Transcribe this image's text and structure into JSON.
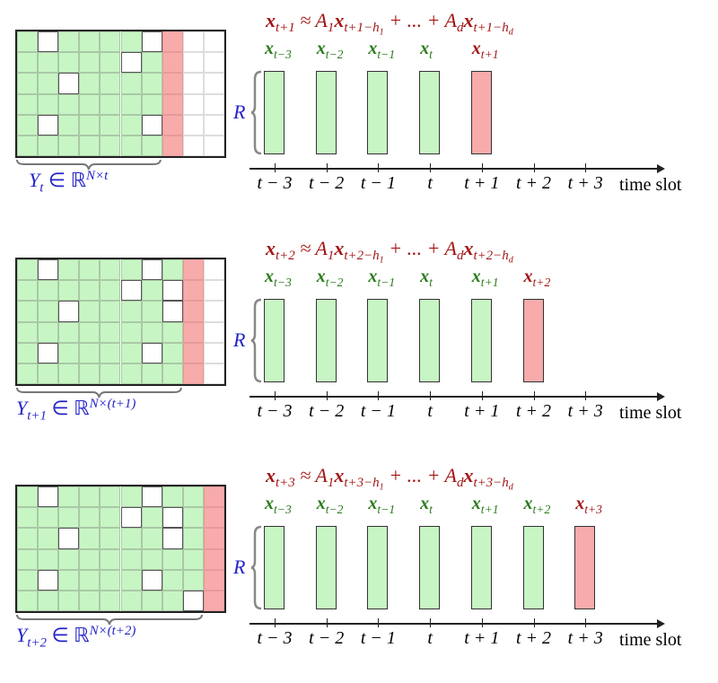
{
  "colors": {
    "observed": "#c8f5c4",
    "forecast": "#f7abab",
    "missing": "#ffffff",
    "formula": "#a31515",
    "label_green": "#2a7a1a",
    "matrix_label": "#2323c8"
  },
  "row_label": "R",
  "axis": {
    "ticks": [
      "t − 3",
      "t − 2",
      "t − 1",
      "t",
      "t + 1",
      "t + 2",
      "t + 3"
    ],
    "label": "time slot"
  },
  "panels": [
    {
      "formula": {
        "lhs_sub": "t+1",
        "term1_sub": "t+1−",
        "h1": "h",
        "h1_sub": "1",
        "termd_sub": "t+1−",
        "hd": "h",
        "hd_sub": "d"
      },
      "vectors": [
        {
          "sub": "t−3",
          "state": "observed"
        },
        {
          "sub": "t−2",
          "state": "observed"
        },
        {
          "sub": "t−1",
          "state": "observed"
        },
        {
          "sub": "t",
          "state": "observed"
        },
        {
          "sub": "t+1",
          "state": "forecast"
        }
      ],
      "matrix": {
        "label_sub": "t",
        "label_dim": "N×t",
        "rows": 6,
        "cols": 10,
        "observed_cols": 7,
        "forecast_col": 7,
        "missing_cells": [
          [
            0,
            1
          ],
          [
            0,
            6
          ],
          [
            1,
            5
          ],
          [
            2,
            2
          ],
          [
            4,
            1
          ],
          [
            4,
            6
          ]
        ]
      }
    },
    {
      "formula": {
        "lhs_sub": "t+2",
        "term1_sub": "t+2−",
        "h1": "h",
        "h1_sub": "1",
        "termd_sub": "t+2−",
        "hd": "h",
        "hd_sub": "d"
      },
      "vectors": [
        {
          "sub": "t−3",
          "state": "observed"
        },
        {
          "sub": "t−2",
          "state": "observed"
        },
        {
          "sub": "t−1",
          "state": "observed"
        },
        {
          "sub": "t",
          "state": "observed"
        },
        {
          "sub": "t+1",
          "state": "observed"
        },
        {
          "sub": "t+2",
          "state": "forecast"
        }
      ],
      "matrix": {
        "label_sub": "t+1",
        "label_dim": "N×(t+1)",
        "rows": 6,
        "cols": 10,
        "observed_cols": 8,
        "forecast_col": 8,
        "missing_cells": [
          [
            0,
            1
          ],
          [
            0,
            6
          ],
          [
            1,
            5
          ],
          [
            1,
            7
          ],
          [
            2,
            2
          ],
          [
            2,
            7
          ],
          [
            4,
            1
          ],
          [
            4,
            6
          ]
        ]
      }
    },
    {
      "formula": {
        "lhs_sub": "t+3",
        "term1_sub": "t+3−",
        "h1": "h",
        "h1_sub": "1",
        "termd_sub": "t+3−",
        "hd": "h",
        "hd_sub": "d"
      },
      "vectors": [
        {
          "sub": "t−3",
          "state": "observed"
        },
        {
          "sub": "t−2",
          "state": "observed"
        },
        {
          "sub": "t−1",
          "state": "observed"
        },
        {
          "sub": "t",
          "state": "observed"
        },
        {
          "sub": "t+1",
          "state": "observed"
        },
        {
          "sub": "t+2",
          "state": "observed"
        },
        {
          "sub": "t+3",
          "state": "forecast"
        }
      ],
      "matrix": {
        "label_sub": "t+2",
        "label_dim": "N×(t+2)",
        "rows": 6,
        "cols": 10,
        "observed_cols": 9,
        "forecast_col": 9,
        "missing_cells": [
          [
            0,
            1
          ],
          [
            0,
            6
          ],
          [
            1,
            5
          ],
          [
            1,
            7
          ],
          [
            2,
            2
          ],
          [
            2,
            7
          ],
          [
            4,
            1
          ],
          [
            4,
            6
          ],
          [
            5,
            8
          ]
        ]
      }
    }
  ]
}
